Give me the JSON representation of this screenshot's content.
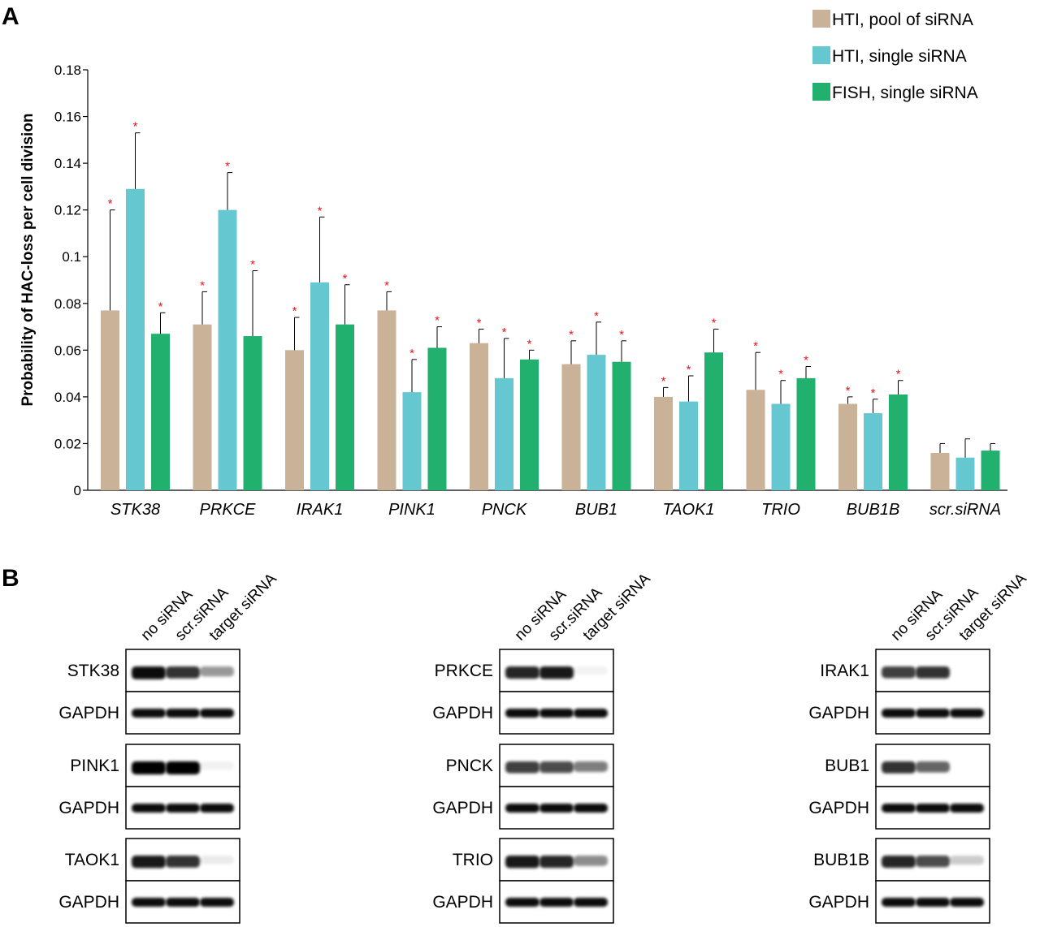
{
  "panel_a_label": "A",
  "panel_b_label": "B",
  "chart_data": {
    "type": "bar",
    "title": "",
    "ylabel": "Probability of HAC-loss per cell division",
    "xlabel": "",
    "ylim": [
      0,
      0.18
    ],
    "yticks": [
      0,
      0.02,
      0.04,
      0.06,
      0.08,
      0.1,
      0.12,
      0.14,
      0.16,
      0.18
    ],
    "ytick_labels": [
      "0",
      "0.02",
      "0.04",
      "0.06",
      "0.08",
      "0.1",
      "0.12",
      "0.14",
      "0.16",
      "0.18"
    ],
    "categories": [
      "STK38",
      "PRKCE",
      "IRAK1",
      "PINK1",
      "PNCK",
      "BUB1",
      "TAOK1",
      "TRIO",
      "BUB1B",
      "scr.siRNA"
    ],
    "legend_position": "top-right",
    "grid": false,
    "series": [
      {
        "name": "HTI, pool of siRNA",
        "color": "#c9b298",
        "values": [
          0.077,
          0.071,
          0.06,
          0.077,
          0.063,
          0.054,
          0.04,
          0.043,
          0.037,
          0.016
        ],
        "errors": [
          0.043,
          0.014,
          0.014,
          0.008,
          0.006,
          0.01,
          0.004,
          0.016,
          0.003,
          0.004
        ],
        "significant": [
          true,
          true,
          true,
          true,
          true,
          true,
          true,
          true,
          true,
          false
        ]
      },
      {
        "name": "HTI, single siRNA",
        "color": "#65c8d0",
        "values": [
          0.129,
          0.12,
          0.089,
          0.042,
          0.048,
          0.058,
          0.038,
          0.037,
          0.033,
          0.014
        ],
        "errors": [
          0.024,
          0.016,
          0.028,
          0.014,
          0.017,
          0.014,
          0.011,
          0.01,
          0.006,
          0.008
        ],
        "significant": [
          true,
          true,
          true,
          true,
          true,
          true,
          true,
          true,
          true,
          false
        ]
      },
      {
        "name": "FISH, single siRNA",
        "color": "#21b06e",
        "values": [
          0.067,
          0.066,
          0.071,
          0.061,
          0.056,
          0.055,
          0.059,
          0.048,
          0.041,
          0.017
        ],
        "errors": [
          0.009,
          0.028,
          0.017,
          0.009,
          0.004,
          0.009,
          0.01,
          0.005,
          0.006,
          0.003
        ],
        "significant": [
          true,
          true,
          true,
          true,
          true,
          true,
          true,
          true,
          true,
          false
        ]
      }
    ]
  },
  "blots": {
    "lane_labels": [
      "no siRNA",
      "scr.siRNA",
      "target siRNA"
    ],
    "loading_control": "GAPDH",
    "columns": [
      {
        "targets": [
          {
            "name": "STK38",
            "intensity": [
              0.95,
              0.8,
              0.4
            ]
          },
          {
            "name": "PINK1",
            "intensity": [
              1.0,
              1.0,
              0.05
            ]
          },
          {
            "name": "TAOK1",
            "intensity": [
              0.9,
              0.8,
              0.08
            ]
          }
        ]
      },
      {
        "targets": [
          {
            "name": "PRKCE",
            "intensity": [
              0.85,
              0.9,
              0.05
            ]
          },
          {
            "name": "PNCK",
            "intensity": [
              0.75,
              0.7,
              0.5
            ]
          },
          {
            "name": "TRIO",
            "intensity": [
              0.9,
              0.85,
              0.45
            ]
          }
        ]
      },
      {
        "targets": [
          {
            "name": "IRAK1",
            "intensity": [
              0.75,
              0.8,
              0.0
            ]
          },
          {
            "name": "BUB1",
            "intensity": [
              0.8,
              0.6,
              0.0
            ]
          },
          {
            "name": "BUB1B",
            "intensity": [
              0.85,
              0.7,
              0.2
            ]
          }
        ]
      }
    ]
  }
}
